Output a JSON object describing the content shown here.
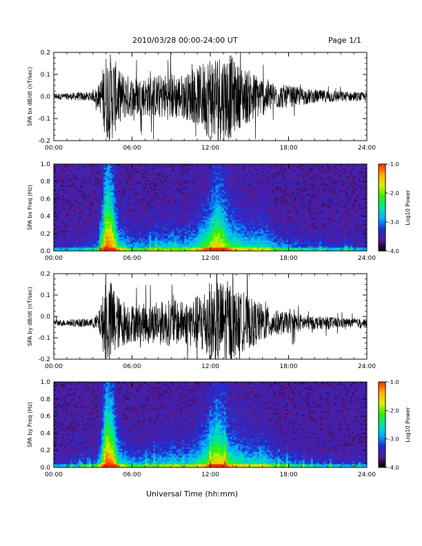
{
  "header": {
    "title": "2010/03/28  00:00-24:00 UT",
    "page": "Page 1/1"
  },
  "figure": {
    "xlabel": "Universal Time (hh:mm)"
  },
  "chart_data": [
    {
      "type": "line",
      "ylabel": "SPA bx dB/dt (nT/sec)",
      "xlim": [
        0,
        24
      ],
      "ylim": [
        -0.2,
        0.2
      ],
      "xticks": [
        "00:00",
        "06:00",
        "12:00",
        "18:00",
        "24:00"
      ],
      "yticks": [
        "0.2",
        "0.1",
        "0.0",
        "-0.1",
        "-0.2"
      ],
      "x": [
        0,
        1,
        2,
        3,
        3.5,
        4,
        4.5,
        5,
        6,
        7,
        8,
        9,
        10,
        11,
        12,
        12.5,
        13,
        13.5,
        14,
        15,
        16,
        17,
        18,
        19,
        20,
        21,
        22,
        23,
        24
      ],
      "envelope": [
        0.015,
        0.015,
        0.02,
        0.02,
        0.06,
        0.2,
        0.2,
        0.12,
        0.09,
        0.09,
        0.1,
        0.11,
        0.1,
        0.13,
        0.2,
        0.2,
        0.2,
        0.2,
        0.15,
        0.12,
        0.09,
        0.06,
        0.05,
        0.04,
        0.03,
        0.03,
        0.025,
        0.02,
        0.02
      ],
      "baseline": 0.0,
      "color": "#000000"
    },
    {
      "type": "heatmap",
      "ylabel": "SPA bx Freq (Hz)",
      "xlim": [
        0,
        24
      ],
      "ylim": [
        0,
        1.0
      ],
      "xticks": [
        "00:00",
        "06:00",
        "12:00",
        "18:00",
        "24:00"
      ],
      "yticks": [
        "1.0",
        "0.8",
        "0.6",
        "0.4",
        "0.2",
        "0.0"
      ],
      "colorbar": {
        "label": "Log10 Power",
        "ticks": [
          "-1.0",
          "-2.0",
          "-3.0",
          "-4.0"
        ],
        "range": [
          -4,
          -1
        ],
        "colors": [
          "#000000",
          "#5a1a96",
          "#1e2ad2",
          "#00b4ff",
          "#00e8a0",
          "#30f000",
          "#d8f000",
          "#ffb000",
          "#ff2a00"
        ]
      },
      "x": [
        0,
        1,
        2,
        3,
        3.5,
        4,
        4.5,
        5,
        6,
        7,
        8,
        9,
        10,
        11,
        12,
        12.5,
        13,
        13.5,
        14,
        15,
        16,
        17,
        18,
        19,
        20,
        21,
        22,
        23,
        24
      ],
      "activity": [
        0.15,
        0.15,
        0.2,
        0.25,
        0.4,
        1.0,
        0.9,
        0.5,
        0.35,
        0.35,
        0.4,
        0.45,
        0.4,
        0.5,
        0.7,
        0.85,
        0.75,
        0.6,
        0.55,
        0.45,
        0.5,
        0.35,
        0.3,
        0.25,
        0.2,
        0.2,
        0.18,
        0.15,
        0.15
      ]
    },
    {
      "type": "line",
      "ylabel": "SPA by dB/dt (nT/sec)",
      "xlim": [
        0,
        24
      ],
      "ylim": [
        -0.2,
        0.2
      ],
      "xticks": [
        "00:00",
        "06:00",
        "12:00",
        "18:00",
        "24:00"
      ],
      "yticks": [
        "0.2",
        "0.1",
        "0.0",
        "-0.1",
        "-0.2"
      ],
      "x": [
        0,
        1,
        2,
        3,
        3.5,
        4,
        4.5,
        5,
        6,
        7,
        8,
        9,
        10,
        11,
        12,
        12.5,
        13,
        13.5,
        14,
        15,
        16,
        17,
        18,
        19,
        20,
        21,
        22,
        23,
        24
      ],
      "envelope": [
        0.015,
        0.015,
        0.02,
        0.02,
        0.06,
        0.2,
        0.2,
        0.12,
        0.09,
        0.09,
        0.1,
        0.11,
        0.1,
        0.13,
        0.2,
        0.2,
        0.2,
        0.2,
        0.15,
        0.12,
        0.09,
        0.06,
        0.05,
        0.04,
        0.03,
        0.03,
        0.025,
        0.02,
        0.02
      ],
      "baseline": -0.03,
      "color": "#000000"
    },
    {
      "type": "heatmap",
      "ylabel": "SPA by Freq (Hz)",
      "xlim": [
        0,
        24
      ],
      "ylim": [
        0,
        1.0
      ],
      "xticks": [
        "00:00",
        "06:00",
        "12:00",
        "18:00",
        "24:00"
      ],
      "yticks": [
        "1.0",
        "0.8",
        "0.6",
        "0.4",
        "0.2",
        "0.0"
      ],
      "colorbar": {
        "label": "Log10 Power",
        "ticks": [
          "-1.0",
          "-2.0",
          "-3.0",
          "-4.0"
        ],
        "range": [
          -4,
          -1
        ],
        "colors": [
          "#000000",
          "#5a1a96",
          "#1e2ad2",
          "#00b4ff",
          "#00e8a0",
          "#30f000",
          "#d8f000",
          "#ffb000",
          "#ff2a00"
        ]
      },
      "x": [
        0,
        1,
        2,
        3,
        3.5,
        4,
        4.5,
        5,
        6,
        7,
        8,
        9,
        10,
        11,
        12,
        12.5,
        13,
        13.5,
        14,
        15,
        16,
        17,
        18,
        19,
        20,
        21,
        22,
        23,
        24
      ],
      "activity": [
        0.15,
        0.15,
        0.2,
        0.25,
        0.4,
        1.0,
        0.9,
        0.5,
        0.35,
        0.35,
        0.4,
        0.45,
        0.4,
        0.5,
        0.7,
        0.85,
        0.75,
        0.6,
        0.55,
        0.45,
        0.5,
        0.35,
        0.3,
        0.25,
        0.2,
        0.2,
        0.18,
        0.15,
        0.15
      ]
    }
  ]
}
